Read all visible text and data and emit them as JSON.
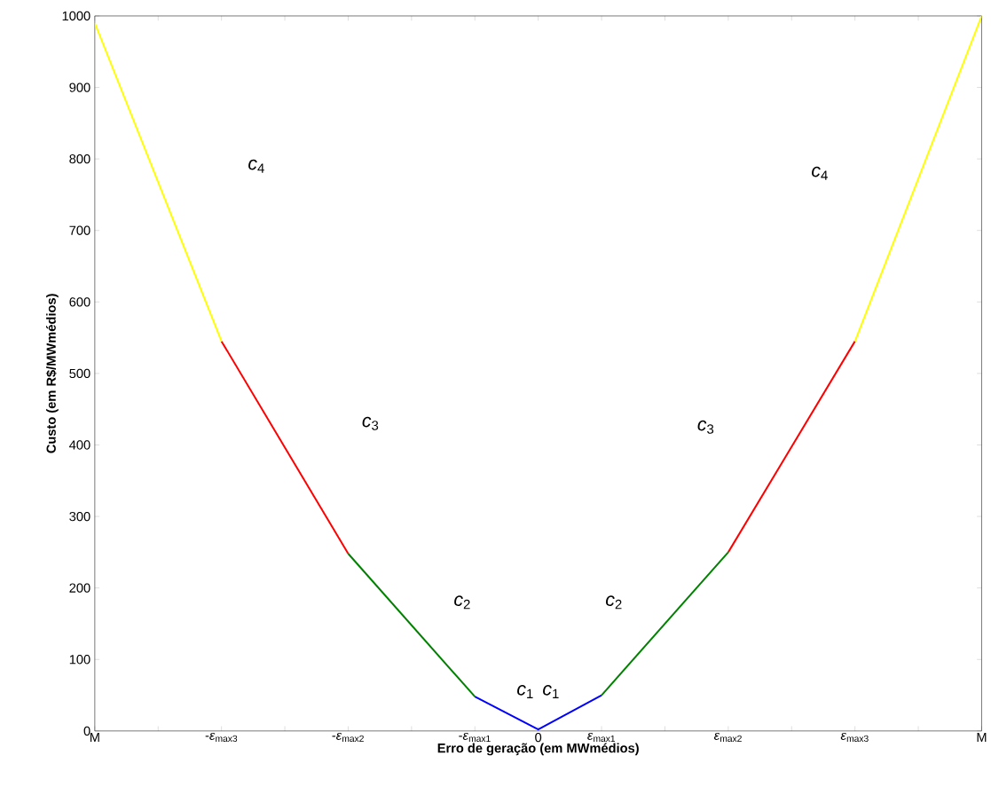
{
  "chart_data": {
    "type": "line",
    "xlabel": "Erro de geração (em MWmédios)",
    "ylabel": "Custo (em R$/MWmédios)",
    "categories": [
      "M",
      null,
      "-*ε*$_{max3}$",
      null,
      "-*ε*$_{max2}$",
      null,
      "-*ε*$_{max1}$",
      "0",
      "*ε*$_{max1}$",
      null,
      "*ε*$_{max2}$",
      null,
      "*ε*$_{max3}$",
      null,
      "M"
    ],
    "ylim": [
      0,
      1000
    ],
    "yticks": [
      0,
      100,
      200,
      300,
      400,
      500,
      600,
      700,
      800,
      900,
      1000
    ],
    "grid": false,
    "line_style": "solid",
    "series": [
      {
        "color": "#0000ff",
        "values": [
          null,
          null,
          null,
          null,
          null,
          null,
          48,
          2,
          50,
          null,
          null,
          null,
          null,
          null,
          null
        ]
      },
      {
        "color": "#008000",
        "values": [
          null,
          null,
          null,
          null,
          248,
          null,
          48,
          null,
          null,
          null,
          null,
          null,
          null,
          null,
          null
        ]
      },
      {
        "color": "#008000",
        "values": [
          null,
          null,
          null,
          null,
          null,
          null,
          null,
          null,
          50,
          null,
          250,
          null,
          null,
          null,
          null
        ]
      },
      {
        "color": "#ff0000",
        "values": [
          null,
          null,
          545,
          null,
          248,
          null,
          null,
          null,
          null,
          null,
          null,
          null,
          null,
          null,
          null
        ]
      },
      {
        "color": "#ff0000",
        "values": [
          null,
          null,
          null,
          null,
          null,
          null,
          null,
          null,
          null,
          null,
          250,
          null,
          545,
          null,
          null
        ]
      },
      {
        "color": "#ffff00",
        "values": [
          990,
          null,
          545,
          null,
          null,
          null,
          null,
          null,
          null,
          null,
          null,
          null,
          null,
          null,
          null
        ]
      },
      {
        "color": "#ffff00",
        "values": [
          null,
          null,
          null,
          null,
          null,
          null,
          null,
          null,
          null,
          null,
          null,
          null,
          545,
          null,
          1000
        ]
      }
    ],
    "annotations": [
      "*c*$_{4}$",
      "*c*$_{3}$",
      "*c*$_{2}$",
      "*c*$_{1}$",
      "*c*$_{1}$",
      "*c*$_{2}$",
      "*c*$_{3}$",
      "*c*$_{4}$"
    ]
  }
}
